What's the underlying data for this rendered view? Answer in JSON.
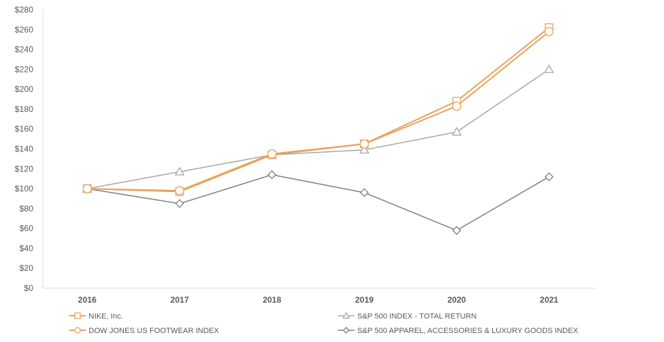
{
  "chart_data": {
    "type": "line",
    "title": "",
    "xlabel": "",
    "ylabel": "",
    "categories": [
      "2016",
      "2017",
      "2018",
      "2019",
      "2020",
      "2021"
    ],
    "ylim": [
      0,
      280
    ],
    "y_ticks": [
      0,
      20,
      40,
      60,
      80,
      100,
      120,
      140,
      160,
      180,
      200,
      220,
      240,
      260,
      280
    ],
    "y_tick_prefix": "$",
    "grid": false,
    "legend_position": "bottom",
    "series": [
      {
        "name": "NIKE, Inc.",
        "values": [
          100,
          97,
          134,
          145,
          188,
          262
        ],
        "color": "#E8A35C",
        "marker": "square",
        "stroke_width": 2
      },
      {
        "name": "S&P 500 INDEX - TOTAL RETURN",
        "values": [
          100,
          117,
          134,
          139,
          157,
          220
        ],
        "color": "#A6A6A6",
        "marker": "triangle",
        "stroke_width": 1.5
      },
      {
        "name": "DOW JONES US FOOTWEAR INDEX",
        "values": [
          100,
          98,
          135,
          145,
          183,
          258
        ],
        "color": "#E8A35C",
        "marker": "circle",
        "stroke_width": 2
      },
      {
        "name": "S&P 500 APPAREL, ACCESSORIES & LUXURY GOODS INDEX",
        "values": [
          100,
          85,
          114,
          96,
          58,
          112
        ],
        "color": "#7F7F7F",
        "marker": "diamond",
        "stroke_width": 1.5
      }
    ]
  }
}
